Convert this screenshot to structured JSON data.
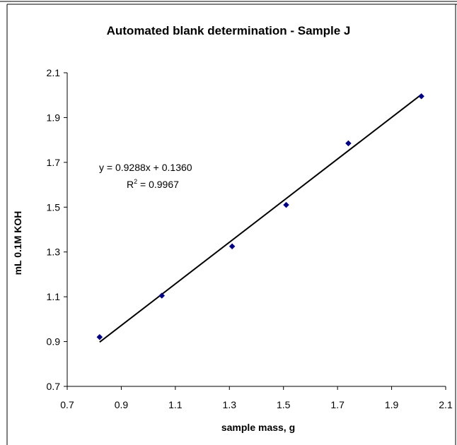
{
  "chart_data": {
    "type": "scatter",
    "title": "Automated blank determination - Sample J",
    "xlabel": "sample mass, g",
    "ylabel": "mL 0.1M KOH",
    "xlim": [
      0.7,
      2.1
    ],
    "ylim": [
      0.7,
      2.1
    ],
    "x_ticks": [
      "0.7",
      "0.9",
      "1.1",
      "1.3",
      "1.5",
      "1.7",
      "1.9",
      "2.1"
    ],
    "y_ticks": [
      "0.7",
      "0.9",
      "1.1",
      "1.3",
      "1.5",
      "1.7",
      "1.9",
      "2.1"
    ],
    "x_tick_values": [
      0.7,
      0.9,
      1.1,
      1.3,
      1.5,
      1.7,
      1.9,
      2.1
    ],
    "y_tick_values": [
      0.7,
      0.9,
      1.1,
      1.3,
      1.5,
      1.7,
      1.9,
      2.1
    ],
    "series": [
      {
        "x": [
          0.82,
          1.05,
          1.31,
          1.51,
          1.74,
          2.01
        ],
        "y": [
          0.92,
          1.105,
          1.325,
          1.51,
          1.785,
          1.995
        ]
      }
    ],
    "trendline": {
      "slope": 0.9288,
      "intercept": 0.136,
      "x_range": [
        0.82,
        2.01
      ]
    },
    "equation_text": "y = 0.9288x + 0.1360",
    "r2_label": "R",
    "r2_sup": "2",
    "r2_value_text": " = 0.9967",
    "marker_color": "#000080",
    "line_color": "#000000",
    "grid": false
  }
}
